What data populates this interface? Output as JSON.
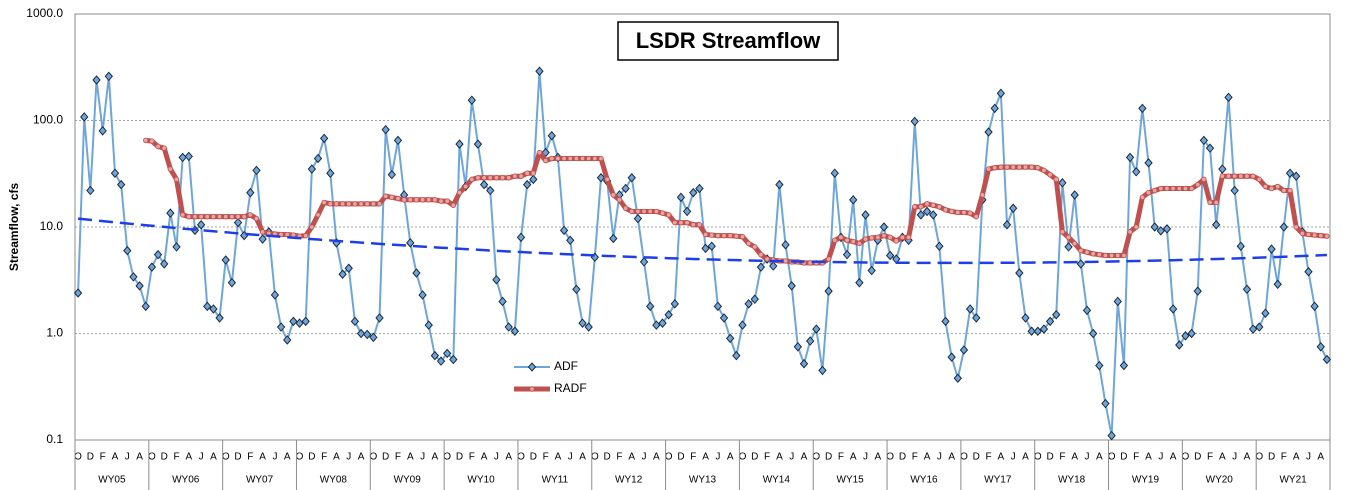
{
  "chart_data": {
    "type": "line",
    "title": "LSDR Streamflow",
    "y_label": "Streamflow, cfs",
    "log_scale": true,
    "grid": true,
    "ylim": [
      0.1,
      1000
    ],
    "yticks": [
      {
        "value": 0.1,
        "label": "0.1"
      },
      {
        "value": 1,
        "label": "1.0"
      },
      {
        "value": 10,
        "label": "10.0"
      },
      {
        "value": 100,
        "label": "100.0"
      },
      {
        "value": 1000,
        "label": "1000.0"
      }
    ],
    "categories": [
      "O",
      null,
      "D",
      null,
      "F",
      null,
      "A",
      null,
      "J",
      null,
      "A",
      null,
      "O",
      null,
      "D",
      null,
      "F",
      null,
      "A",
      null,
      "J",
      null,
      "A",
      null,
      "O",
      null,
      "D",
      null,
      "F",
      null,
      "A",
      null,
      "J",
      null,
      "A",
      null,
      "O",
      null,
      "D",
      null,
      "F",
      null,
      "A",
      null,
      "J",
      null,
      "A",
      null,
      "O",
      null,
      "D",
      null,
      "F",
      null,
      "A",
      null,
      "J",
      null,
      "A",
      null,
      "O",
      null,
      "D",
      null,
      "F",
      null,
      "A",
      null,
      "J",
      null,
      "A",
      null,
      "O",
      null,
      "D",
      null,
      "F",
      null,
      "A",
      null,
      "J",
      null,
      "A",
      null,
      "O",
      null,
      "D",
      null,
      "F",
      null,
      "A",
      null,
      "J",
      null,
      "A",
      null,
      "O",
      null,
      "D",
      null,
      "F",
      null,
      "A",
      null,
      "J",
      null,
      "A",
      null,
      "O",
      null,
      "D",
      null,
      "F",
      null,
      "A",
      null,
      "J",
      null,
      "A",
      null,
      "O",
      null,
      "D",
      null,
      "F",
      null,
      "A",
      null,
      "J",
      null,
      "A",
      null,
      "O",
      null,
      "D",
      null,
      "F",
      null,
      "A",
      null,
      "J",
      null,
      "A",
      null,
      "O",
      null,
      "D",
      null,
      "F",
      null,
      "A",
      null,
      "J",
      null,
      "A",
      null,
      "O",
      null,
      "D",
      null,
      "F",
      null,
      "A",
      null,
      "J",
      null,
      "A",
      null,
      "O",
      null,
      "D",
      null,
      "F",
      null,
      "A",
      null,
      "J",
      null,
      "A",
      null,
      "O",
      null,
      "D",
      null,
      "F",
      null,
      "A",
      null,
      "J",
      null,
      "A",
      null,
      "O",
      null,
      "D",
      null,
      "F",
      null,
      "A",
      null,
      "J",
      null,
      "A",
      null
    ],
    "groups": [
      "WY05",
      "WY06",
      "WY07",
      "WY08",
      "WY09",
      "WY10",
      "WY11",
      "WY12",
      "WY13",
      "WY14",
      "WY15",
      "WY16",
      "WY17",
      "WY18",
      "WY19",
      "WY20",
      "WY21"
    ],
    "series": [
      {
        "name": "ADF",
        "color": "#6ea6dc",
        "marker_color": "#4a7fb5",
        "values": [
          2.4,
          108,
          22,
          240,
          80,
          260,
          32,
          25,
          6,
          3.4,
          2.8,
          1.8,
          4.2,
          5.5,
          4.5,
          13.5,
          6.5,
          45,
          46,
          9.3,
          10.5,
          1.8,
          1.7,
          1.4,
          4.9,
          3.0,
          11,
          8.3,
          21,
          34,
          7.7,
          9,
          2.3,
          1.15,
          0.87,
          1.3,
          1.25,
          1.3,
          35,
          44,
          68,
          32,
          7.1,
          3.6,
          4.1,
          1.3,
          1.0,
          0.98,
          0.92,
          1.4,
          82,
          31,
          65,
          20,
          7.1,
          3.7,
          2.3,
          1.2,
          0.62,
          0.55,
          0.65,
          0.57,
          60,
          24,
          155,
          60,
          25,
          22,
          3.2,
          2.0,
          1.15,
          1.05,
          8,
          25,
          28,
          290,
          50,
          72,
          45,
          9.3,
          7.5,
          2.6,
          1.25,
          1.15,
          5.2,
          29,
          27,
          7.8,
          20,
          23,
          29,
          12,
          4.7,
          1.8,
          1.2,
          1.25,
          1.5,
          1.9,
          19,
          14,
          21,
          23,
          6.3,
          6.6,
          1.8,
          1.4,
          0.9,
          0.62,
          1.2,
          1.9,
          2.1,
          4.2,
          5.0,
          4.3,
          25,
          6.8,
          2.8,
          0.75,
          0.52,
          0.85,
          1.1,
          0.45,
          2.5,
          32,
          8,
          5.5,
          18,
          3.0,
          13,
          3.9,
          7.5,
          10,
          5.4,
          5.0,
          8,
          7.5,
          98,
          13,
          14,
          13,
          6.6,
          1.3,
          0.6,
          0.38,
          0.7,
          1.7,
          1.4,
          18,
          78,
          130,
          180,
          10.5,
          15,
          3.7,
          1.4,
          1.05,
          1.05,
          1.1,
          1.3,
          1.5,
          26,
          6.5,
          20,
          4.5,
          1.65,
          1.0,
          0.5,
          0.22,
          0.11,
          2.0,
          0.5,
          45,
          33,
          130,
          40,
          10,
          9.2,
          9.6,
          1.7,
          0.78,
          0.95,
          1.0,
          2.5,
          65,
          55,
          10.5,
          35,
          165,
          22,
          6.6,
          2.6,
          1.1,
          1.15,
          1.55,
          6.2,
          2.9,
          10,
          32,
          30,
          9,
          3.8,
          1.8,
          0.75,
          0.57
        ]
      },
      {
        "name": "RADF",
        "color": "#c0504d",
        "marker_color": "#e3a7a5",
        "values": [
          null,
          null,
          null,
          null,
          null,
          null,
          null,
          null,
          null,
          null,
          null,
          65,
          64,
          57,
          55,
          35,
          28,
          13,
          12.5,
          12.5,
          12.5,
          12.5,
          12.5,
          12.5,
          12.5,
          12.5,
          12.5,
          12.5,
          13,
          12,
          9,
          8.7,
          8.6,
          8.5,
          8.5,
          8.4,
          8.2,
          8.3,
          10,
          13,
          17,
          16.5,
          16.5,
          16.5,
          16.5,
          16.5,
          16.5,
          16.5,
          16.5,
          16.5,
          19.5,
          19,
          18.5,
          18,
          18,
          18,
          18,
          18,
          18,
          17.5,
          17.5,
          16,
          21,
          24,
          28,
          29,
          29,
          29,
          29,
          29,
          29,
          30,
          30,
          32,
          32,
          50,
          42,
          44,
          44,
          44,
          44,
          44,
          44,
          44,
          44,
          44,
          28,
          20,
          18,
          15,
          14,
          14,
          14,
          14,
          14,
          13.5,
          13,
          11,
          11,
          11,
          10.5,
          10.5,
          8.5,
          8.4,
          8.3,
          8.3,
          8.3,
          8.2,
          8.1,
          7.0,
          6.5,
          5.5,
          5.0,
          4.9,
          4.8,
          4.8,
          4.7,
          4.7,
          4.6,
          4.6,
          4.6,
          4.6,
          5.0,
          7.5,
          8.0,
          7.5,
          7.3,
          7.0,
          7.7,
          7.9,
          8.0,
          8.3,
          8.0,
          7.4,
          8.0,
          8.0,
          15.5,
          15.5,
          16.5,
          16,
          15.5,
          14.5,
          14,
          13.7,
          13.7,
          13.5,
          12.5,
          20,
          35,
          36,
          36.5,
          36.5,
          36.5,
          36.5,
          36.5,
          36.5,
          36,
          34,
          31,
          28,
          9,
          8,
          7,
          6,
          5.8,
          5.6,
          5.5,
          5.4,
          5.4,
          5.4,
          5.4,
          9,
          10,
          19,
          21,
          22,
          23,
          23,
          23,
          23,
          23,
          23,
          25,
          28,
          17,
          17,
          30,
          30,
          30,
          30,
          30,
          30,
          28,
          24,
          23,
          24,
          22,
          22,
          10,
          8.7,
          8.5,
          8.4,
          8.3,
          8.2
        ]
      }
    ],
    "trendline": {
      "series": 0,
      "order": 2,
      "color": "#1f3fe6",
      "dashed": true
    }
  }
}
